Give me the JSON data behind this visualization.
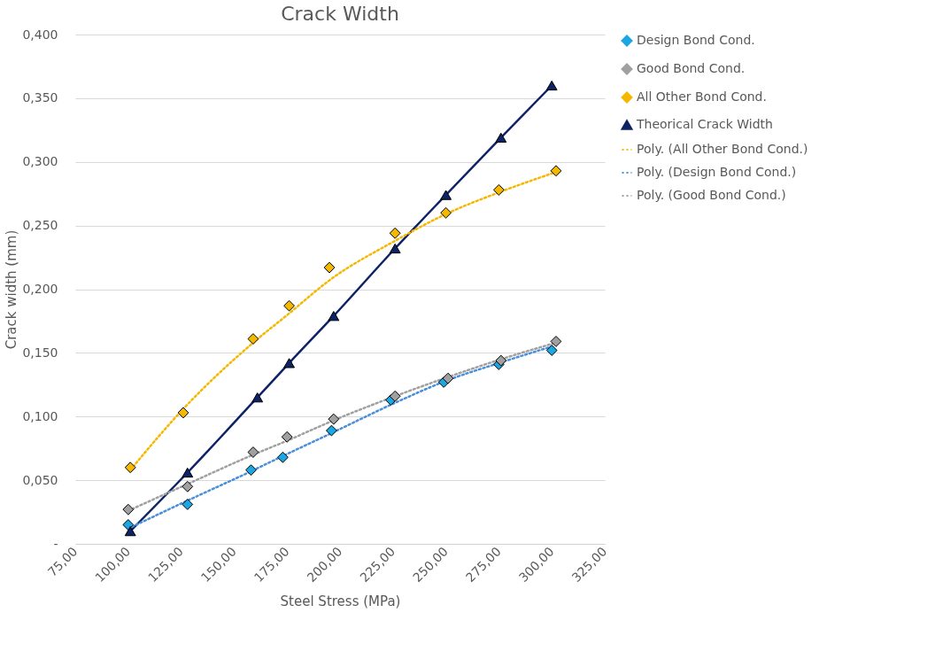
{
  "chart_data": {
    "type": "scatter",
    "title": "Crack Width",
    "xlabel": "Steel Stress  (MPa)",
    "ylabel": "Crack width (mm)",
    "xlim": [
      75,
      325
    ],
    "ylim": [
      0,
      0.4
    ],
    "xticks": [
      {
        "value": 75,
        "label": "75,00"
      },
      {
        "value": 100,
        "label": "100,00"
      },
      {
        "value": 125,
        "label": "125,00"
      },
      {
        "value": 150,
        "label": "150,00"
      },
      {
        "value": 175,
        "label": "175,00"
      },
      {
        "value": 200,
        "label": "200,00"
      },
      {
        "value": 225,
        "label": "225,00"
      },
      {
        "value": 250,
        "label": "250,00"
      },
      {
        "value": 275,
        "label": "275,00"
      },
      {
        "value": 300,
        "label": "300,00"
      },
      {
        "value": 325,
        "label": "325,00"
      }
    ],
    "yticks": [
      {
        "value": 0,
        "label": "-"
      },
      {
        "value": 0.05,
        "label": "0,050"
      },
      {
        "value": 0.1,
        "label": "0,100"
      },
      {
        "value": 0.15,
        "label": "0,150"
      },
      {
        "value": 0.2,
        "label": "0,200"
      },
      {
        "value": 0.25,
        "label": "0,250"
      },
      {
        "value": 0.3,
        "label": "0,300"
      },
      {
        "value": 0.35,
        "label": "0,350"
      },
      {
        "value": 0.4,
        "label": "0,400"
      }
    ],
    "grid": "y",
    "legend": "right",
    "series": [
      {
        "name": "Design Bond Cond.",
        "type": "scatter",
        "marker": "diamond",
        "color": "#1ca6e2",
        "x": [
          100,
          128,
          158,
          173,
          196,
          224,
          249,
          275,
          300
        ],
        "values": [
          0.015,
          0.031,
          0.058,
          0.068,
          0.089,
          0.113,
          0.127,
          0.141,
          0.152
        ]
      },
      {
        "name": "Good Bond Cond.",
        "type": "scatter",
        "marker": "diamond",
        "color": "#a0a0a0",
        "x": [
          100,
          128,
          159,
          175,
          197,
          226,
          251,
          276,
          302
        ],
        "values": [
          0.027,
          0.045,
          0.072,
          0.084,
          0.098,
          0.116,
          0.13,
          0.144,
          0.159
        ]
      },
      {
        "name": "All Other Bond Cond.",
        "type": "scatter",
        "marker": "diamond",
        "color": "#f5b800",
        "x": [
          101,
          126,
          159,
          176,
          195,
          226,
          250,
          275,
          302
        ],
        "values": [
          0.06,
          0.103,
          0.161,
          0.187,
          0.217,
          0.244,
          0.26,
          0.278,
          0.293
        ]
      },
      {
        "name": "Theorical Crack Width",
        "type": "line",
        "marker": "triangle",
        "line_style": "solid",
        "color": "#0d2366",
        "x": [
          101,
          128,
          161,
          176,
          197,
          226,
          250,
          276,
          300
        ],
        "values": [
          0.01,
          0.056,
          0.115,
          0.142,
          0.179,
          0.232,
          0.274,
          0.319,
          0.36
        ]
      },
      {
        "name": "Poly. (All Other Bond Cond.)",
        "type": "line",
        "marker": "none",
        "line_style": "dotted",
        "color": "#f5b800",
        "x": [
          101,
          126,
          159,
          176,
          195,
          226,
          250,
          275,
          302
        ],
        "values": [
          0.058,
          0.106,
          0.158,
          0.181,
          0.207,
          0.238,
          0.259,
          0.276,
          0.292
        ]
      },
      {
        "name": "Poly. (Design Bond Cond.)",
        "type": "line",
        "marker": "none",
        "line_style": "dotted",
        "color": "#4a90d9",
        "x": [
          100,
          128,
          158,
          173,
          196,
          225,
          250,
          275,
          300
        ],
        "values": [
          0.012,
          0.034,
          0.057,
          0.069,
          0.087,
          0.11,
          0.128,
          0.142,
          0.155
        ]
      },
      {
        "name": "Poly. (Good Bond Cond.)",
        "type": "line",
        "marker": "none",
        "line_style": "dotted",
        "color": "#a0a0a0",
        "x": [
          100,
          128,
          159,
          175,
          197,
          226,
          251,
          276,
          302
        ],
        "values": [
          0.026,
          0.047,
          0.07,
          0.081,
          0.097,
          0.116,
          0.131,
          0.145,
          0.158
        ]
      }
    ]
  }
}
